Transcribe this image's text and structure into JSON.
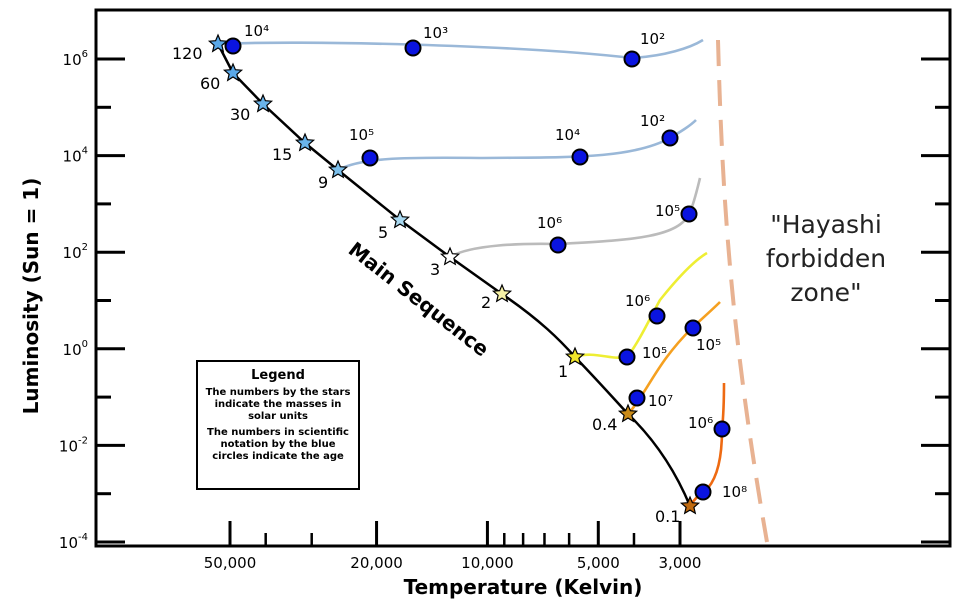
{
  "chart_data": {
    "type": "line",
    "xlabel": "Temperature (Kelvin)",
    "ylabel": "Luminosity (Sun = 1)",
    "x_scale": "log-reversed",
    "y_scale": "log",
    "x_ticks": [
      {
        "value": 50000,
        "label": "50,000"
      },
      {
        "value": 20000,
        "label": "20,000"
      },
      {
        "value": 10000,
        "label": "10,000"
      },
      {
        "value": 5000,
        "label": "5,000"
      },
      {
        "value": 3000,
        "label": "3,000"
      }
    ],
    "x_minor_ticks": [
      40000,
      30000,
      9000,
      8000,
      7000,
      6000,
      4000
    ],
    "y_ticks": [
      {
        "base": "10",
        "exp": "-4"
      },
      {
        "base": "10",
        "exp": "-2"
      },
      {
        "base": "10",
        "exp": "0"
      },
      {
        "base": "10",
        "exp": "2"
      },
      {
        "base": "10",
        "exp": "4"
      },
      {
        "base": "10",
        "exp": "6"
      }
    ],
    "main_sequence_label": "Main Sequence",
    "forbidden_zone_label": [
      "\"Hayashi",
      "forbidden",
      "zone\""
    ],
    "main_sequence_stars": [
      {
        "mass": "120",
        "temp": 54000,
        "logL": 6.3,
        "color": "#5aa8e8"
      },
      {
        "mass": "60",
        "temp": 48000,
        "logL": 5.75,
        "color": "#5aa8e8"
      },
      {
        "mass": "30",
        "temp": 40000,
        "logL": 5.05,
        "color": "#6ab4ea"
      },
      {
        "mass": "15",
        "temp": 31000,
        "logL": 4.25,
        "color": "#6ab4ea"
      },
      {
        "mass": "9",
        "temp": 26000,
        "logL": 3.6,
        "color": "#7cc0ec"
      },
      {
        "mass": "5",
        "temp": 17000,
        "logL": 2.7,
        "color": "#a8d8f0"
      },
      {
        "mass": "3",
        "temp": 12500,
        "logL": 1.9,
        "color": "#ffffff"
      },
      {
        "mass": "2",
        "temp": 9000,
        "logL": 1.15,
        "color": "#f6f1a6"
      },
      {
        "mass": "1",
        "temp": 5700,
        "logL": -0.1,
        "color": "#f2e62a"
      },
      {
        "mass": "0.4",
        "temp": 3900,
        "logL": -1.3,
        "color": "#c98a18"
      },
      {
        "mass": "0.1",
        "temp": 3000,
        "logL": -3.2,
        "color": "#c06a10"
      }
    ],
    "tracks": [
      {
        "mass": "120",
        "color": "#9ab8d8",
        "start": {
          "temp": 54000,
          "logL": 6.3
        },
        "points": [
          {
            "age": "10⁴",
            "temp": 49000,
            "logL": 6.3
          },
          {
            "age": "10³",
            "temp": 16000,
            "logL": 6.2
          },
          {
            "age": "10²",
            "temp": 4000,
            "logL": 6.0
          }
        ]
      },
      {
        "mass": "15",
        "color": "#9ab8d8",
        "start": {
          "temp": 26000,
          "logL": 3.6
        },
        "points": [
          {
            "age": "10⁵",
            "temp": 20000,
            "logL": 3.9
          },
          {
            "age": "10⁴",
            "temp": 5000,
            "logL": 3.9
          },
          {
            "age": "10²",
            "temp": 3000,
            "logL": 4.3
          }
        ]
      },
      {
        "mass": "5",
        "color": "#bbbbbb",
        "start": {
          "temp": 12500,
          "logL": 1.9
        },
        "points": [
          {
            "age": "10⁶",
            "temp": 6000,
            "logL": 2.2
          },
          {
            "age": "10⁵",
            "temp": 2800,
            "logL": 2.8
          }
        ]
      },
      {
        "mass": "2",
        "color": "#eeee33",
        "start": {
          "temp": 5700,
          "logL": -0.1
        },
        "points": [
          {
            "age": "10⁶",
            "temp": 4000,
            "logL": -0.15
          },
          {
            "age": "10⁵",
            "temp": 3500,
            "logL": 0.7
          }
        ]
      },
      {
        "mass": "1",
        "color": "#f5a020",
        "start": {
          "temp": 3900,
          "logL": -1.3
        },
        "points": [
          {
            "age": "10⁷",
            "temp": 3800,
            "logL": -1.0
          },
          {
            "age": "10⁵",
            "temp": 2800,
            "logL": 0.4
          }
        ]
      },
      {
        "mass": "0.4",
        "color": "#ee6a12",
        "start": {
          "temp": 3000,
          "logL": -3.2
        },
        "points": [
          {
            "age": "10⁸",
            "temp": 2700,
            "logL": -2.9
          },
          {
            "age": "10⁶",
            "temp": 2400,
            "logL": -1.6
          }
        ]
      }
    ]
  },
  "legend": {
    "title": "Legend",
    "line1": "The numbers by the stars indicate the masses in solar units",
    "line2": "The numbers in scientific notation by the blue circles indicate the age"
  }
}
